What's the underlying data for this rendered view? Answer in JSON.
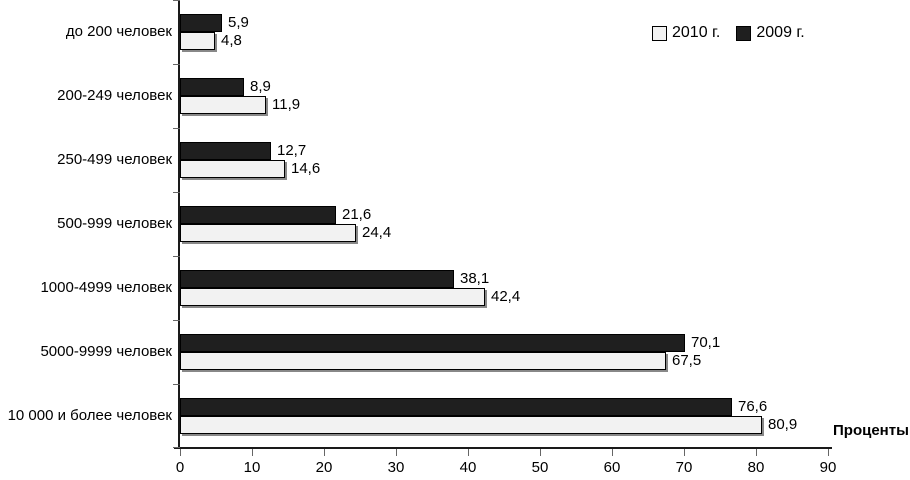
{
  "chart_data": {
    "type": "bar",
    "orientation": "horizontal",
    "title": "",
    "xlabel": "Проценты",
    "ylabel": "",
    "xlim": [
      0,
      90
    ],
    "x_ticks": [
      0,
      10,
      20,
      30,
      40,
      50,
      60,
      70,
      80,
      90
    ],
    "grid": false,
    "legend_position": "top-right",
    "decimal_separator": ",",
    "categories": [
      "до 200 человек",
      "200-249 человек",
      "250-499 человек",
      "500-999 человек",
      "1000-4999 человек",
      "5000-9999 человек",
      "10 000 и более человек"
    ],
    "series": [
      {
        "name": "2010 г.",
        "color": "#f2f2f2",
        "border_color": "#000000",
        "values": [
          4.8,
          11.9,
          14.6,
          24.4,
          42.4,
          67.5,
          80.9
        ]
      },
      {
        "name": "2009 г.",
        "color": "#1f1f1f",
        "border_color": "#000000",
        "values": [
          5.9,
          8.9,
          12.7,
          21.6,
          38.1,
          70.1,
          76.6
        ]
      }
    ]
  }
}
